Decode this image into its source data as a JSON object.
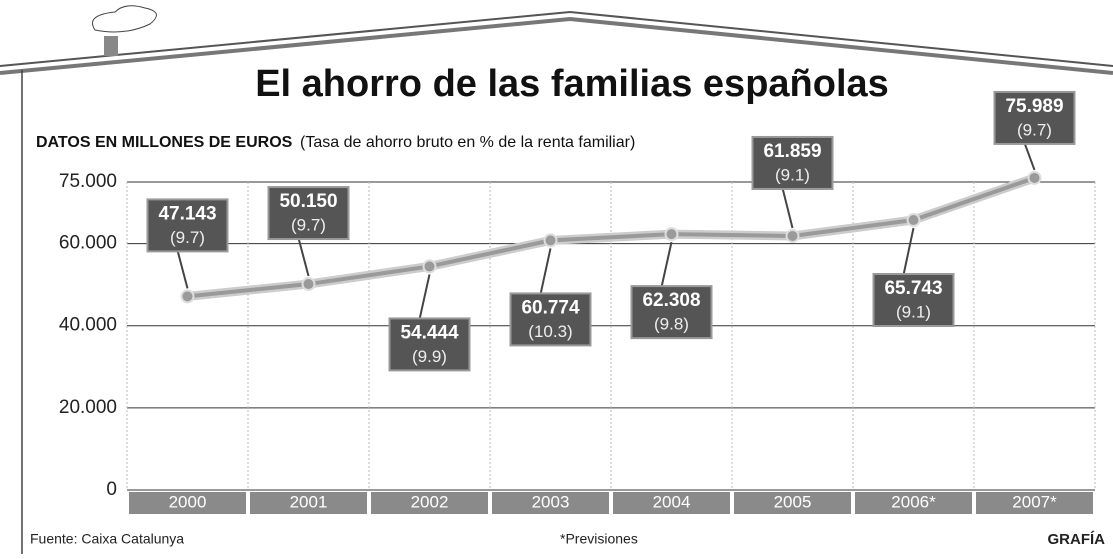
{
  "chart_data": {
    "type": "line",
    "title": "El ahorro de las familias españolas",
    "y_label": "DATOS EN MILLONES DE EUROS",
    "subtitle": "(Tasa de ahorro bruto en % de la renta familiar)",
    "categories": [
      "2000",
      "2001",
      "2002",
      "2003",
      "2004",
      "2005",
      "2006*",
      "2007*"
    ],
    "values": [
      47143,
      50150,
      54444,
      60774,
      62308,
      61859,
      65743,
      75989
    ],
    "value_labels": [
      "47.143",
      "50.150",
      "54.444",
      "60.774",
      "62.308",
      "61.859",
      "65.743",
      "75.989"
    ],
    "rate_labels": [
      "(9.7)",
      "(9.7)",
      "(9.9)",
      "(10.3)",
      "(9.8)",
      "(9.1)",
      "(9.1)",
      "(9.7)"
    ],
    "color": "#9a9a9a",
    "ylim": [
      0,
      75000
    ],
    "yticks": [
      0,
      {
        "value": 20000,
        "label": "20.000"
      },
      {
        "value": 40000,
        "label": "40.000"
      },
      {
        "value": 60000,
        "label": "60.000"
      },
      {
        "value": 75000,
        "label": "75.000"
      }
    ],
    "grid": true,
    "source": "Fuente: Caixa Catalunya",
    "note": "*Previsiones",
    "credit": "GRAFÍA"
  }
}
